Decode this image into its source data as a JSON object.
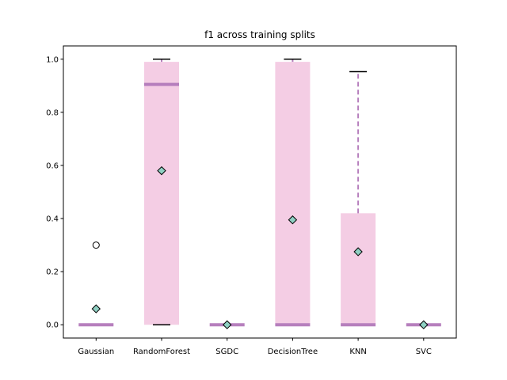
{
  "chart_data": {
    "type": "box",
    "title": "f1 across training splits",
    "xlabel": "",
    "ylabel": "",
    "ylim": [
      -0.05,
      1.05
    ],
    "yticks": [
      0.0,
      0.2,
      0.4,
      0.6,
      0.8,
      1.0
    ],
    "ytick_labels": [
      "0.0",
      "0.2",
      "0.4",
      "0.6",
      "0.8",
      "1.0"
    ],
    "categories": [
      "Gaussian",
      "RandomForest",
      "SGDC",
      "DecisionTree",
      "KNN",
      "SVC"
    ],
    "boxes": [
      {
        "name": "Gaussian",
        "whisker_low": 0.0,
        "q1": 0.0,
        "median": 0.0,
        "q3": 0.0,
        "whisker_high": 0.0,
        "mean": 0.06,
        "outliers": [
          0.3
        ]
      },
      {
        "name": "RandomForest",
        "whisker_low": 0.0,
        "q1": 0.0,
        "median": 0.905,
        "q3": 0.99,
        "whisker_high": 1.0,
        "mean": 0.58,
        "outliers": []
      },
      {
        "name": "SGDC",
        "whisker_low": 0.0,
        "q1": 0.0,
        "median": 0.0,
        "q3": 0.0,
        "whisker_high": 0.0,
        "mean": 0.0,
        "outliers": []
      },
      {
        "name": "DecisionTree",
        "whisker_low": 0.0,
        "q1": 0.0,
        "median": 0.0,
        "q3": 0.99,
        "whisker_high": 1.0,
        "mean": 0.395,
        "outliers": []
      },
      {
        "name": "KNN",
        "whisker_low": 0.0,
        "q1": 0.0,
        "median": 0.0,
        "q3": 0.42,
        "whisker_high": 0.953,
        "mean": 0.275,
        "outliers": []
      },
      {
        "name": "SVC",
        "whisker_low": 0.0,
        "q1": 0.0,
        "median": 0.0,
        "q3": 0.0,
        "whisker_high": 0.0,
        "mean": 0.0,
        "outliers": []
      }
    ],
    "grid": false,
    "legend": "none",
    "colors": {
      "box_fill": "#f4cde4",
      "median": "#b67fbd",
      "whisker": "#b67fbd",
      "cap": "#000000",
      "mean_fill": "#8fd0c3",
      "mean_edge": "#000000",
      "outlier_edge": "#000000"
    }
  }
}
